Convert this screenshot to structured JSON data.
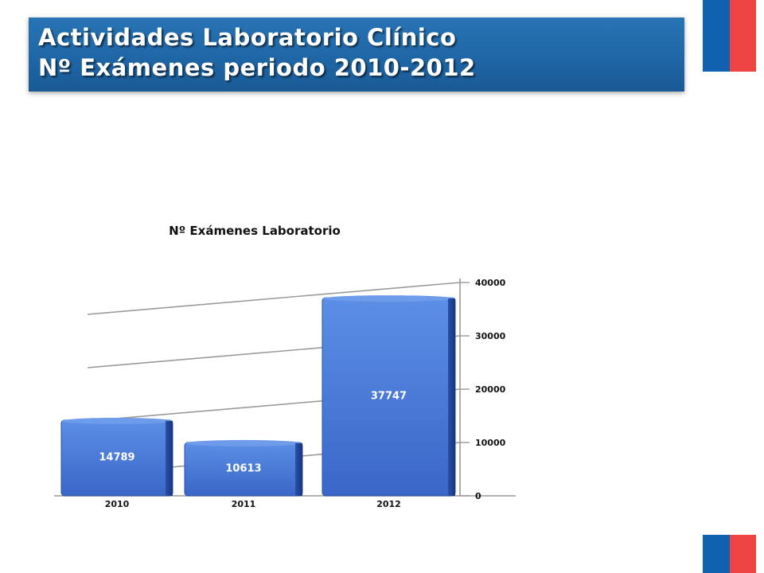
{
  "header": {
    "line1": "Actividades Laboratorio Clínico",
    "line2": "Nº Exámenes periodo 2010-2012"
  },
  "colors": {
    "banner": "#1f66a6",
    "flag_blue": "#0f62b0",
    "flag_red": "#ef4444",
    "bar_top": "#5b8fe6",
    "bar_bottom": "#3a66c8"
  },
  "chart_data": {
    "type": "bar",
    "title": "Nº Exámenes Laboratorio",
    "categories": [
      "2010",
      "2011",
      "2012"
    ],
    "values": [
      14789,
      10613,
      37747
    ],
    "ylim": [
      0,
      40000
    ],
    "yticks": [
      0,
      10000,
      20000,
      30000,
      40000
    ],
    "grid": true,
    "axis_position": "right",
    "data_labels": true
  }
}
